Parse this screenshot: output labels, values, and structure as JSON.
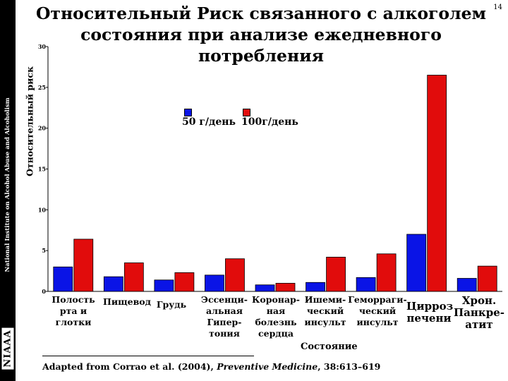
{
  "page_number": "14",
  "title": "Относительный Риск связанного с алкоголем состояния при анализе ежедневного потребления",
  "sidebar": {
    "institute": "National Institute on Alcohol Abuse and Alcoholism",
    "logo_text": "NIAAA"
  },
  "citation": {
    "prefix": "Adapted from Corrao et al. (2004), ",
    "journal": "Preventive Medicine",
    "suffix": ", 38:613–619"
  },
  "colors": {
    "series_50": "#0a14e6",
    "series_100": "#e10c0c",
    "bar_outline": "#000000"
  },
  "chart_data": {
    "type": "bar",
    "title": "Относительный Риск связанного с алкоголем состояния при анализе ежедневного потребления",
    "ylabel": "Относительный риск",
    "xlabel": "Состояние",
    "ylim": [
      0,
      30
    ],
    "yticks": [
      "0",
      "5",
      "10",
      "15",
      "20",
      "25",
      "30"
    ],
    "grid": false,
    "legend_position": "top-center",
    "categories": [
      "Полость рта и глотки",
      "Пищевод",
      "Грудь",
      "Эссенциальная Гипертония",
      "Коронарная болезнь сердца",
      "Ишемический инсульт",
      "Геморрагический инсульт",
      "Цирроз печени",
      "Хрон. Панкреатит"
    ],
    "category_labels": [
      "Полость\nрта и глотки",
      "Пищевод",
      "Грудь",
      "Эссенци-\nальная\nГипер-\nтония",
      "Коронар-\nная\nболезнь\nсердца",
      "Ишеми-\nческий\nинсульт",
      "Геморраги-\nческий\nинсульт",
      "Цирроз\nпечени",
      "Хрон.\nПанкре-\nатит"
    ],
    "series": [
      {
        "name": "50 г/день",
        "values": [
          3.0,
          1.8,
          1.4,
          2.0,
          0.8,
          1.1,
          1.7,
          7.0,
          1.6
        ]
      },
      {
        "name": "100г/день",
        "values": [
          6.4,
          3.5,
          2.3,
          4.0,
          1.0,
          4.2,
          4.6,
          26.5,
          3.1
        ]
      }
    ]
  }
}
